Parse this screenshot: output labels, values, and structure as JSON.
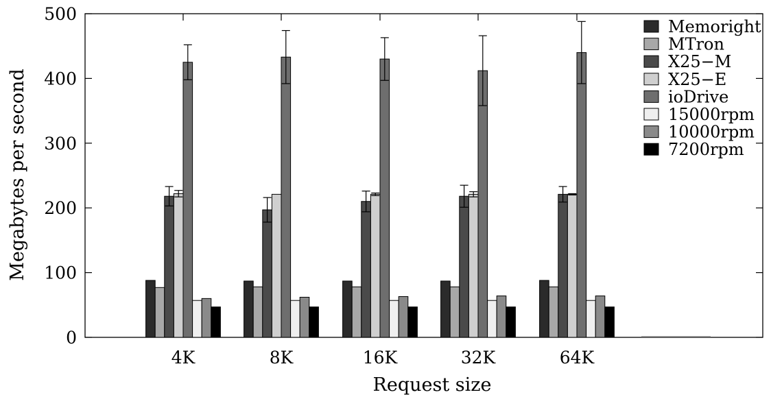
{
  "chart_data": {
    "type": "bar",
    "xlabel": "Request size",
    "ylabel": "Megabytes per second",
    "ylim": [
      0,
      500
    ],
    "yticks": [
      0,
      100,
      200,
      300,
      400,
      500
    ],
    "categories": [
      "4K",
      "8K",
      "16K",
      "32K",
      "64K"
    ],
    "legend_position": "top-right",
    "grid": false,
    "error_bars": true,
    "series": [
      {
        "name": "Memoright",
        "color": "#2b2b2b",
        "values": [
          88,
          87,
          87,
          87,
          88
        ],
        "errors": [
          0,
          0,
          0,
          0,
          0
        ]
      },
      {
        "name": "MTron",
        "color": "#a8a8a8",
        "values": [
          77,
          78,
          78,
          78,
          78
        ],
        "errors": [
          0,
          0,
          0,
          0,
          0
        ]
      },
      {
        "name": "X25−M",
        "color": "#4a4a4a",
        "values": [
          218,
          197,
          210,
          218,
          221
        ],
        "errors": [
          15,
          19,
          16,
          17,
          12
        ]
      },
      {
        "name": "X25−E",
        "color": "#cfcfcf",
        "values": [
          222,
          221,
          221,
          221,
          221
        ],
        "errors": [
          5,
          0,
          2,
          4,
          1
        ]
      },
      {
        "name": "ioDrive",
        "color": "#6e6e6e",
        "values": [
          425,
          433,
          430,
          412,
          440
        ],
        "errors": [
          27,
          41,
          33,
          54,
          48
        ]
      },
      {
        "name": "15000rpm",
        "color": "#efefef",
        "values": [
          57,
          57,
          57,
          57,
          57
        ],
        "errors": [
          0,
          0,
          0,
          0,
          0
        ]
      },
      {
        "name": "10000rpm",
        "color": "#8a8a8a",
        "values": [
          60,
          62,
          63,
          64,
          64
        ],
        "errors": [
          0,
          0,
          0,
          0,
          0
        ]
      },
      {
        "name": "7200rpm",
        "color": "#000000",
        "values": [
          47,
          47,
          47,
          47,
          47
        ],
        "errors": [
          0,
          0,
          0,
          0,
          0
        ]
      }
    ]
  }
}
